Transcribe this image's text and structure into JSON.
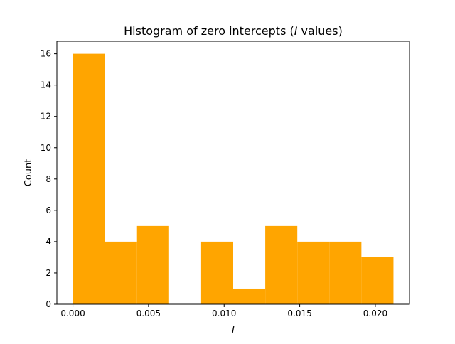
{
  "chart_data": {
    "type": "bar",
    "title_prefix": "Histogram of zero intercepts (",
    "title_var": "I",
    "title_suffix": " values)",
    "xlabel": "I",
    "ylabel": "Count",
    "bin_edges": [
      0.0,
      0.00212,
      0.00424,
      0.00636,
      0.00848,
      0.0106,
      0.01272,
      0.01484,
      0.01696,
      0.01908,
      0.0212
    ],
    "values": [
      16,
      4,
      5,
      0,
      4,
      1,
      5,
      4,
      4,
      3
    ],
    "xlim": [
      -0.00106,
      0.02226
    ],
    "ylim": [
      0,
      16.8
    ],
    "xticks": [
      0.0,
      0.005,
      0.01,
      0.015,
      0.02
    ],
    "xtick_labels": [
      "0.000",
      "0.005",
      "0.010",
      "0.015",
      "0.020"
    ],
    "yticks": [
      0,
      2,
      4,
      6,
      8,
      10,
      12,
      14,
      16
    ],
    "ytick_labels": [
      "0",
      "2",
      "4",
      "6",
      "8",
      "10",
      "12",
      "14",
      "16"
    ],
    "grid": false,
    "bar_color": "#ffa500"
  }
}
